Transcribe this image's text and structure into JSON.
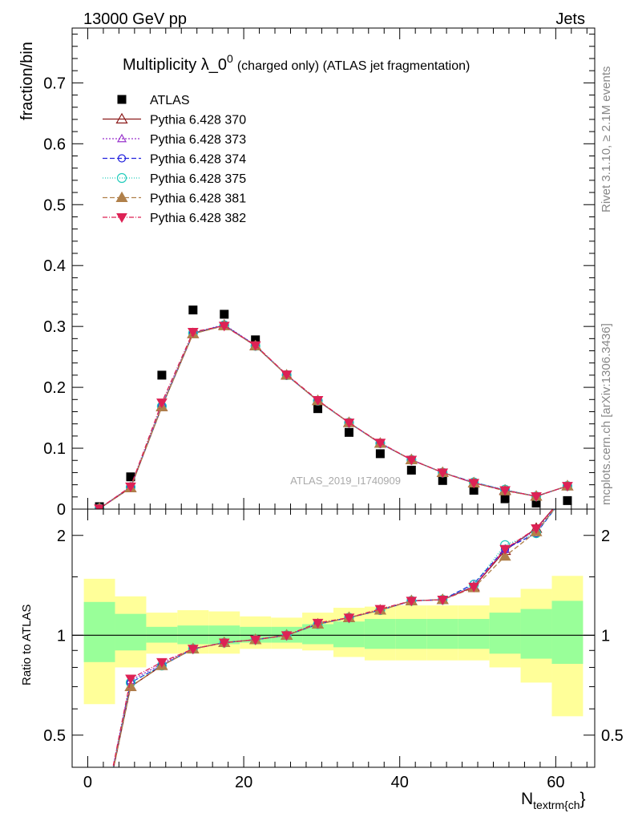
{
  "header": {
    "left": "13000 GeV pp",
    "right": "Jets"
  },
  "side_labels": {
    "rivet": "Rivet 3.1.10, ≥ 2.1M events",
    "mcplots": "mcplots.cern.ch [arXiv:1306.3436]"
  },
  "watermark": "ATLAS_2019_I1740909",
  "colors": {
    "data": "#000000",
    "band_outer": "#ffff99",
    "band_inner": "#99ff99"
  },
  "chart_data": [
    {
      "type": "scatter",
      "panel": "main",
      "title": "Multiplicity λ_0",
      "title_sup": "0",
      "title_suffix": "(charged only) (ATLAS jet fragmentation)",
      "ylabel": "fraction/bin",
      "xlim": [
        -2,
        65
      ],
      "ylim": [
        0,
        0.79
      ],
      "yticks": [
        0,
        0.1,
        0.2,
        0.3,
        0.4,
        0.5,
        0.6,
        0.7
      ],
      "ytick_labels": [
        "0",
        "0.1",
        "0.2",
        "0.3",
        "0.4",
        "0.5",
        "0.6",
        "0.7"
      ],
      "legend_position": "top-left",
      "x": [
        1.5,
        5.5,
        9.5,
        13.5,
        17.5,
        21.5,
        25.5,
        29.5,
        33.5,
        37.5,
        41.5,
        45.5,
        49.5,
        53.5,
        57.5,
        61.5
      ],
      "series": [
        {
          "name": "ATLAS",
          "color": "#000000",
          "marker": "square",
          "dash": "",
          "values": [
            0.004,
            0.053,
            0.22,
            0.327,
            0.32,
            0.278,
            0.22,
            0.165,
            0.126,
            0.091,
            0.064,
            0.047,
            0.031,
            0.017,
            0.01,
            0.014
          ]
        },
        {
          "name": "Pythia 6.428 370",
          "color": "#8b1a1a",
          "marker": "triangle-open",
          "dash": "",
          "values": [
            0.001,
            0.035,
            0.168,
            0.288,
            0.302,
            0.268,
            0.22,
            0.178,
            0.142,
            0.108,
            0.081,
            0.06,
            0.043,
            0.031,
            0.021,
            0.038
          ]
        },
        {
          "name": "Pythia 6.428 373",
          "color": "#9933cc",
          "marker": "triangle-open-small",
          "dash": "2,2",
          "values": [
            0.001,
            0.036,
            0.17,
            0.289,
            0.303,
            0.269,
            0.22,
            0.178,
            0.142,
            0.108,
            0.081,
            0.06,
            0.043,
            0.031,
            0.021,
            0.038
          ]
        },
        {
          "name": "Pythia 6.428 374",
          "color": "#2222dd",
          "marker": "circle-open",
          "dash": "6,3",
          "values": [
            0.001,
            0.036,
            0.169,
            0.289,
            0.302,
            0.269,
            0.22,
            0.178,
            0.142,
            0.108,
            0.081,
            0.06,
            0.044,
            0.031,
            0.021,
            0.038
          ]
        },
        {
          "name": "Pythia 6.428 375",
          "color": "#22ccbb",
          "marker": "circle-open-large",
          "dash": "1,2",
          "values": [
            0.001,
            0.036,
            0.169,
            0.289,
            0.302,
            0.268,
            0.22,
            0.178,
            0.142,
            0.108,
            0.081,
            0.06,
            0.044,
            0.032,
            0.021,
            0.038
          ]
        },
        {
          "name": "Pythia 6.428 381",
          "color": "#b0804a",
          "marker": "triangle-filled",
          "dash": "6,3",
          "values": [
            0.001,
            0.035,
            0.168,
            0.288,
            0.301,
            0.268,
            0.22,
            0.178,
            0.142,
            0.108,
            0.081,
            0.06,
            0.043,
            0.03,
            0.021,
            0.038
          ]
        },
        {
          "name": "Pythia 6.428 382",
          "color": "#dd2255",
          "marker": "triangle-down-filled",
          "dash": "6,2,1,2",
          "values": [
            0.001,
            0.037,
            0.175,
            0.291,
            0.301,
            0.269,
            0.221,
            0.179,
            0.142,
            0.109,
            0.081,
            0.06,
            0.043,
            0.031,
            0.021,
            0.038
          ]
        }
      ]
    },
    {
      "type": "line",
      "panel": "ratio",
      "ylabel": "Ratio to ATLAS",
      "xlabel": "N",
      "xlabel_sub": "textrm{ch",
      "xlabel_suffix": "}",
      "xlim": [
        -2,
        65
      ],
      "ylim": [
        0.4,
        2.4
      ],
      "log_y": true,
      "yticks": [
        0.5,
        1,
        2
      ],
      "ytick_labels": [
        "0.5",
        "1",
        "2"
      ],
      "xticks": [
        0,
        20,
        40,
        60
      ],
      "xtick_labels": [
        "0",
        "20",
        "40",
        "60"
      ],
      "reference": 1,
      "bins": [
        [
          -0.5,
          3.5
        ],
        [
          3.5,
          7.5
        ],
        [
          7.5,
          11.5
        ],
        [
          11.5,
          15.5
        ],
        [
          15.5,
          19.5
        ],
        [
          19.5,
          23.5
        ],
        [
          23.5,
          27.5
        ],
        [
          27.5,
          31.5
        ],
        [
          31.5,
          35.5
        ],
        [
          35.5,
          39.5
        ],
        [
          39.5,
          43.5
        ],
        [
          43.5,
          47.5
        ],
        [
          47.5,
          51.5
        ],
        [
          51.5,
          55.5
        ],
        [
          55.5,
          59.5
        ],
        [
          59.5,
          63.5
        ]
      ],
      "band_outer": [
        [
          0.62,
          1.48
        ],
        [
          0.8,
          1.31
        ],
        [
          0.88,
          1.17
        ],
        [
          0.88,
          1.19
        ],
        [
          0.88,
          1.18
        ],
        [
          0.91,
          1.14
        ],
        [
          0.91,
          1.13
        ],
        [
          0.9,
          1.17
        ],
        [
          0.86,
          1.21
        ],
        [
          0.84,
          1.22
        ],
        [
          0.84,
          1.23
        ],
        [
          0.84,
          1.23
        ],
        [
          0.84,
          1.23
        ],
        [
          0.8,
          1.3
        ],
        [
          0.72,
          1.38
        ],
        [
          0.57,
          1.51
        ]
      ],
      "band_inner": [
        [
          0.83,
          1.26
        ],
        [
          0.9,
          1.16
        ],
        [
          0.95,
          1.06
        ],
        [
          0.94,
          1.07
        ],
        [
          0.94,
          1.07
        ],
        [
          0.95,
          1.06
        ],
        [
          0.95,
          1.06
        ],
        [
          0.94,
          1.08
        ],
        [
          0.92,
          1.1
        ],
        [
          0.91,
          1.12
        ],
        [
          0.91,
          1.12
        ],
        [
          0.91,
          1.12
        ],
        [
          0.91,
          1.12
        ],
        [
          0.88,
          1.17
        ],
        [
          0.85,
          1.2
        ],
        [
          0.82,
          1.27
        ]
      ],
      "x": [
        1.5,
        5.5,
        9.5,
        13.5,
        17.5,
        21.5,
        25.5,
        29.5,
        33.5,
        37.5,
        41.5,
        45.5,
        49.5,
        53.5,
        57.5,
        61.5
      ],
      "series": [
        {
          "name": "Pythia 6.428 370",
          "values": [
            0.25,
            0.7,
            0.81,
            0.91,
            0.95,
            0.97,
            1.0,
            1.08,
            1.13,
            1.19,
            1.27,
            1.28,
            1.4,
            1.8,
            2.1,
            2.7
          ]
        },
        {
          "name": "Pythia 6.428 373",
          "values": [
            0.25,
            0.73,
            0.82,
            0.91,
            0.95,
            0.97,
            1.0,
            1.08,
            1.13,
            1.19,
            1.27,
            1.28,
            1.41,
            1.81,
            2.08,
            2.7
          ]
        },
        {
          "name": "Pythia 6.428 374",
          "values": [
            0.25,
            0.72,
            0.81,
            0.91,
            0.95,
            0.97,
            1.0,
            1.08,
            1.13,
            1.19,
            1.27,
            1.28,
            1.43,
            1.82,
            2.03,
            2.7
          ]
        },
        {
          "name": "Pythia 6.428 375",
          "values": [
            0.25,
            0.72,
            0.81,
            0.91,
            0.95,
            0.97,
            1.0,
            1.08,
            1.13,
            1.19,
            1.27,
            1.28,
            1.42,
            1.87,
            2.03,
            2.7
          ]
        },
        {
          "name": "Pythia 6.428 381",
          "values": [
            0.25,
            0.7,
            0.81,
            0.91,
            0.95,
            0.97,
            1.0,
            1.08,
            1.13,
            1.19,
            1.27,
            1.28,
            1.39,
            1.73,
            2.05,
            2.7
          ]
        },
        {
          "name": "Pythia 6.428 382",
          "values": [
            0.25,
            0.74,
            0.83,
            0.91,
            0.95,
            0.97,
            1.0,
            1.09,
            1.13,
            1.2,
            1.27,
            1.28,
            1.4,
            1.82,
            2.1,
            2.7
          ]
        }
      ]
    }
  ]
}
